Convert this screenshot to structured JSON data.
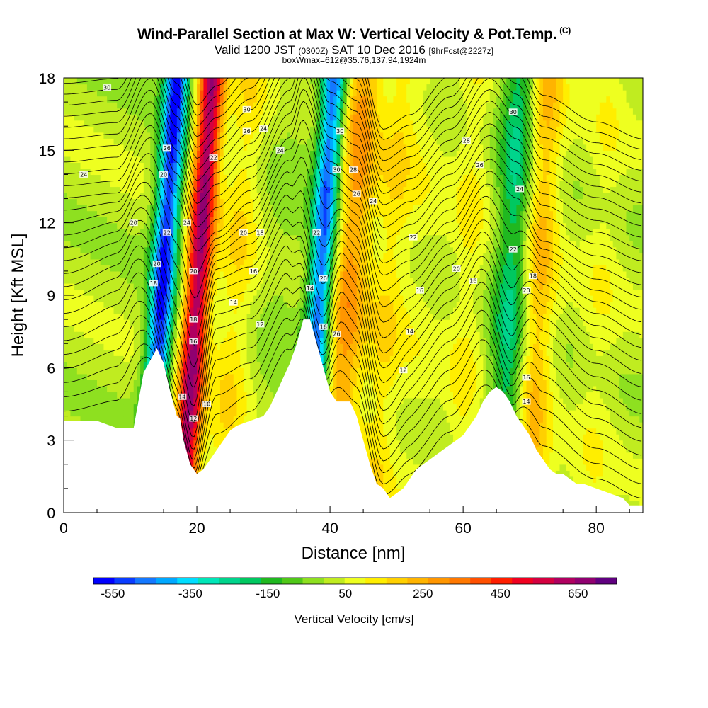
{
  "header": {
    "title": "Wind-Parallel Section at Max W: Vertical Velocity & Pot.Temp.",
    "copyright_mark": "(C)",
    "subtitle_valid": "Valid 1200 JST",
    "subtitle_z": "(0300Z)",
    "subtitle_date": "SAT 10 Dec 2016",
    "subtitle_fcst": "[9hrFcst@2227z]",
    "subtitle2": "boxWmax=612@35.76,137.94,1924m"
  },
  "chart_data": {
    "type": "heatmap",
    "xlabel": "Distance [nm]",
    "ylabel": "Height [Kft MSL]",
    "xlim": [
      0,
      87
    ],
    "ylim": [
      0,
      18
    ],
    "x_ticks": [
      0,
      20,
      40,
      60,
      80
    ],
    "y_ticks": [
      0,
      3,
      6,
      9,
      12,
      15,
      18
    ],
    "colorbar": {
      "label": "Vertical Velocity [cm/s]",
      "tick_labels": [
        "-550",
        "-350",
        "-150",
        "50",
        "250",
        "450",
        "650"
      ],
      "tick_values": [
        -550,
        -350,
        -150,
        50,
        250,
        450,
        650
      ],
      "range": [
        -600,
        750
      ],
      "colors": [
        "#0000ff",
        "#0a3cff",
        "#1478ff",
        "#00a8ff",
        "#00ddff",
        "#00e6b8",
        "#00d48c",
        "#00c860",
        "#20b820",
        "#50c818",
        "#8ee020",
        "#c0ec20",
        "#eeff20",
        "#ffee00",
        "#ffd000",
        "#ffb400",
        "#ff9600",
        "#ff7800",
        "#ff5000",
        "#ff1e00",
        "#f00020",
        "#d40040",
        "#b00060",
        "#900070",
        "#600080"
      ]
    },
    "wave_bands": [
      {
        "x": 14.5,
        "w": -580
      },
      {
        "x": 19.8,
        "w": 620
      },
      {
        "x": 25.5,
        "w": 120
      },
      {
        "x": 32.5,
        "w": -40
      },
      {
        "x": 38.2,
        "w": -520
      },
      {
        "x": 42.5,
        "w": 260
      },
      {
        "x": 48.5,
        "w": 120
      },
      {
        "x": 53.5,
        "w": 40
      },
      {
        "x": 60.5,
        "w": 80
      },
      {
        "x": 67.2,
        "w": -260
      },
      {
        "x": 70.8,
        "w": 220
      },
      {
        "x": 80.5,
        "w": 60
      }
    ],
    "terrain": {
      "x": [
        0,
        5,
        8,
        9.5,
        10.5,
        12,
        13,
        14,
        15,
        16,
        17,
        17.5,
        18,
        19,
        20,
        21,
        22,
        23,
        24,
        25,
        26,
        28,
        30,
        31,
        32,
        33,
        34,
        35,
        36,
        37,
        38,
        39,
        40,
        41,
        42,
        43,
        44,
        45,
        46,
        47,
        48,
        49,
        50,
        51,
        52,
        53,
        54,
        55,
        56,
        57,
        58,
        59,
        60,
        61,
        62,
        63,
        64,
        65,
        66,
        67,
        68,
        69,
        70,
        71,
        72,
        73,
        74,
        75,
        76,
        77,
        78,
        80,
        82,
        84,
        85,
        87
      ],
      "y": [
        3.8,
        3.8,
        3.5,
        3.5,
        3.5,
        5.8,
        6.3,
        6.8,
        6.2,
        5.0,
        4.0,
        3.9,
        3.0,
        2.0,
        1.6,
        1.8,
        2.2,
        2.6,
        3.0,
        3.4,
        3.6,
        3.8,
        4.0,
        4.4,
        5.0,
        5.6,
        6.2,
        7.0,
        8.0,
        8.0,
        7.0,
        6.0,
        5.0,
        4.6,
        4.6,
        4.6,
        4.0,
        3.0,
        2.0,
        1.2,
        1.0,
        0.6,
        0.8,
        1.0,
        1.4,
        1.8,
        2.0,
        2.2,
        2.4,
        2.6,
        2.8,
        3.0,
        3.2,
        3.6,
        4.0,
        4.6,
        5.0,
        5.2,
        5.0,
        4.6,
        4.0,
        3.6,
        3.2,
        2.6,
        2.2,
        1.8,
        1.6,
        1.6,
        1.4,
        1.2,
        1.2,
        1.0,
        0.8,
        0.6,
        0.3,
        0.3
      ]
    },
    "theta_contours": {
      "base": [
        {
          "x": 0,
          "v": 4.0
        },
        {
          "x": 8,
          "v": 4.2
        },
        {
          "x": 13,
          "v": 6.5
        },
        {
          "x": 17,
          "v": 4.0
        },
        {
          "x": 20,
          "v": 1.8
        },
        {
          "x": 23,
          "v": 2.6
        },
        {
          "x": 28,
          "v": 3.8
        },
        {
          "x": 34,
          "v": 6.5
        },
        {
          "x": 36,
          "v": 8.0
        },
        {
          "x": 40,
          "v": 5.0
        },
        {
          "x": 44,
          "v": 4.2
        },
        {
          "x": 48,
          "v": 0.8
        },
        {
          "x": 52,
          "v": 1.4
        },
        {
          "x": 58,
          "v": 3.0
        },
        {
          "x": 64,
          "v": 5.1
        },
        {
          "x": 68,
          "v": 4.0
        },
        {
          "x": 72,
          "v": 2.2
        },
        {
          "x": 80,
          "v": 1.1
        },
        {
          "x": 87,
          "v": 0.4
        }
      ],
      "displacement": [
        {
          "x": 0,
          "d": 0
        },
        {
          "x": 10,
          "d": 1.5
        },
        {
          "x": 15,
          "d": -3.5
        },
        {
          "x": 19,
          "d": -6.0
        },
        {
          "x": 23,
          "d": 2.5
        },
        {
          "x": 28,
          "d": 1.0
        },
        {
          "x": 33,
          "d": 0.8
        },
        {
          "x": 38,
          "d": -5.0
        },
        {
          "x": 42,
          "d": 1.5
        },
        {
          "x": 48,
          "d": -1.5
        },
        {
          "x": 54,
          "d": 0.5
        },
        {
          "x": 62,
          "d": 1.0
        },
        {
          "x": 67,
          "d": -3.0
        },
        {
          "x": 71,
          "d": 2.0
        },
        {
          "x": 80,
          "d": 0.5
        },
        {
          "x": 87,
          "d": 0
        }
      ],
      "levels": 30,
      "spacing_kft": 0.6
    },
    "contour_labels": [
      {
        "x": 6.5,
        "y": 17.6,
        "t": "30"
      },
      {
        "x": 3.0,
        "y": 14.0,
        "t": "24"
      },
      {
        "x": 10.5,
        "y": 12.0,
        "t": "20"
      },
      {
        "x": 15.5,
        "y": 15.1,
        "t": "26"
      },
      {
        "x": 15.0,
        "y": 14.0,
        "t": "20"
      },
      {
        "x": 15.5,
        "y": 11.6,
        "t": "22"
      },
      {
        "x": 14.0,
        "y": 10.3,
        "t": "20"
      },
      {
        "x": 13.5,
        "y": 9.5,
        "t": "18"
      },
      {
        "x": 18.5,
        "y": 12.0,
        "t": "24"
      },
      {
        "x": 19.5,
        "y": 10.0,
        "t": "20"
      },
      {
        "x": 19.5,
        "y": 8.0,
        "t": "18"
      },
      {
        "x": 19.5,
        "y": 7.1,
        "t": "16"
      },
      {
        "x": 17.8,
        "y": 4.8,
        "t": "14"
      },
      {
        "x": 19.5,
        "y": 3.9,
        "t": "12"
      },
      {
        "x": 21.5,
        "y": 4.5,
        "t": "10"
      },
      {
        "x": 22.5,
        "y": 14.7,
        "t": "22"
      },
      {
        "x": 27.5,
        "y": 16.7,
        "t": "30"
      },
      {
        "x": 27.5,
        "y": 15.8,
        "t": "26"
      },
      {
        "x": 30.0,
        "y": 15.9,
        "t": "24"
      },
      {
        "x": 32.5,
        "y": 15.0,
        "t": "24"
      },
      {
        "x": 27.0,
        "y": 11.6,
        "t": "20"
      },
      {
        "x": 29.5,
        "y": 11.6,
        "t": "18"
      },
      {
        "x": 28.5,
        "y": 10.0,
        "t": "16"
      },
      {
        "x": 25.5,
        "y": 8.7,
        "t": "14"
      },
      {
        "x": 29.5,
        "y": 7.8,
        "t": "12"
      },
      {
        "x": 38.0,
        "y": 11.6,
        "t": "22"
      },
      {
        "x": 37.0,
        "y": 9.3,
        "t": "14"
      },
      {
        "x": 39.0,
        "y": 9.7,
        "t": "20"
      },
      {
        "x": 39.0,
        "y": 7.7,
        "t": "16"
      },
      {
        "x": 41.0,
        "y": 7.4,
        "t": "26"
      },
      {
        "x": 41.5,
        "y": 15.8,
        "t": "30"
      },
      {
        "x": 41.0,
        "y": 14.2,
        "t": "30"
      },
      {
        "x": 43.5,
        "y": 14.2,
        "t": "28"
      },
      {
        "x": 44.0,
        "y": 13.2,
        "t": "26"
      },
      {
        "x": 46.5,
        "y": 12.9,
        "t": "24"
      },
      {
        "x": 52.5,
        "y": 11.4,
        "t": "22"
      },
      {
        "x": 53.5,
        "y": 9.2,
        "t": "16"
      },
      {
        "x": 52.0,
        "y": 7.5,
        "t": "14"
      },
      {
        "x": 51.0,
        "y": 5.9,
        "t": "12"
      },
      {
        "x": 59.0,
        "y": 10.1,
        "t": "20"
      },
      {
        "x": 61.5,
        "y": 9.6,
        "t": "16"
      },
      {
        "x": 60.5,
        "y": 15.4,
        "t": "28"
      },
      {
        "x": 62.5,
        "y": 14.4,
        "t": "26"
      },
      {
        "x": 67.5,
        "y": 16.6,
        "t": "30"
      },
      {
        "x": 68.5,
        "y": 13.4,
        "t": "24"
      },
      {
        "x": 67.5,
        "y": 10.9,
        "t": "22"
      },
      {
        "x": 69.5,
        "y": 9.2,
        "t": "20"
      },
      {
        "x": 70.5,
        "y": 9.8,
        "t": "18"
      },
      {
        "x": 69.5,
        "y": 5.6,
        "t": "16"
      },
      {
        "x": 69.5,
        "y": 4.6,
        "t": "14"
      }
    ]
  }
}
